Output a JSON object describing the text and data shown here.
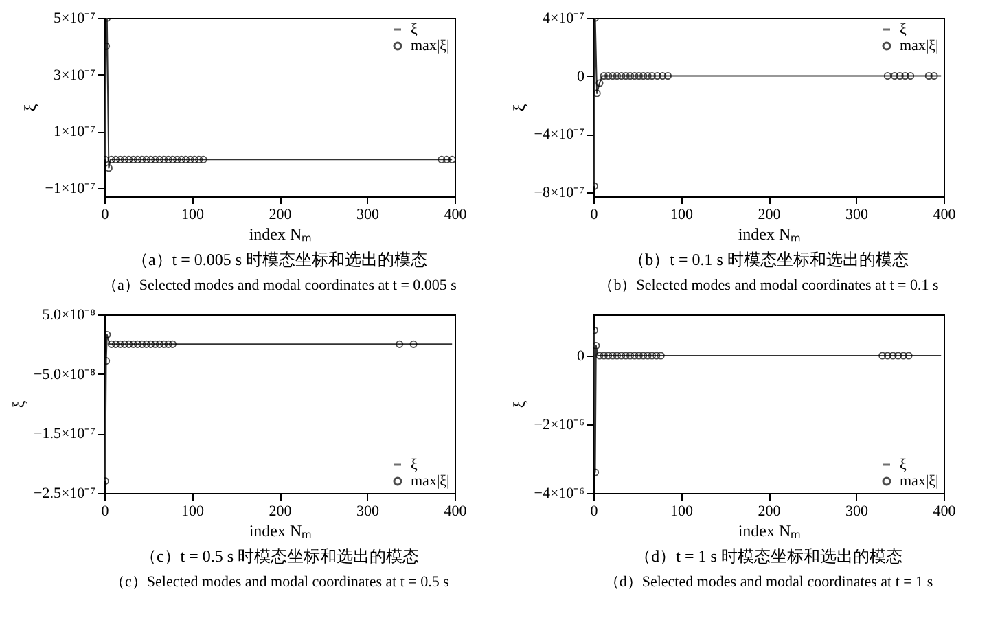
{
  "chart_data": [
    {
      "type": "line",
      "title": "（a）t = 0.005 s 时模态坐标和选出的模态",
      "subtitle": "（a）Selected modes and modal coordinates at t = 0.005 s",
      "xlabel": "index Nₘ",
      "ylabel": "ξ",
      "xlim": [
        0,
        400
      ],
      "xticks": [
        0,
        100,
        200,
        300,
        400
      ],
      "ylim": [
        -1.3e-07,
        5e-07
      ],
      "yticks": [
        {
          "value": -1e-07,
          "label": "−1×10⁻⁷"
        },
        {
          "value": 1e-07,
          "label": "1×10⁻⁷"
        },
        {
          "value": 3e-07,
          "label": "3×10⁻⁷"
        },
        {
          "value": 5e-07,
          "label": "5×10⁻⁷"
        }
      ],
      "grid": false,
      "legend": "top right",
      "series": [
        {
          "name": "ξ",
          "type": "line",
          "marker": "none",
          "color": "#333333",
          "x": [
            1,
            2,
            3,
            5,
            7,
            397
          ],
          "values": [
            0,
            4e-07,
            5e-07,
            -3e-08,
            0,
            0
          ]
        },
        {
          "name": "max|ξ|",
          "type": "scatter",
          "marker": "circle",
          "color": "#000000",
          "x": [
            1,
            2,
            3,
            5,
            8,
            13,
            18,
            23,
            28,
            33,
            38,
            43,
            48,
            53,
            58,
            63,
            68,
            73,
            78,
            83,
            88,
            93,
            98,
            103,
            108,
            113,
            385,
            391,
            397
          ],
          "values": [
            0,
            4e-07,
            5e-07,
            -3e-08,
            0,
            0,
            0,
            0,
            0,
            0,
            0,
            0,
            0,
            0,
            0,
            0,
            0,
            0,
            0,
            0,
            0,
            0,
            0,
            0,
            0,
            0,
            0,
            0,
            0
          ]
        }
      ]
    },
    {
      "type": "line",
      "title": "（b）t = 0.1 s 时模态坐标和选出的模态",
      "subtitle": "（b）Selected modes and modal coordinates at t = 0.1 s",
      "xlabel": "index Nₘ",
      "ylabel": "ξ",
      "xlim": [
        0,
        400
      ],
      "xticks": [
        0,
        100,
        200,
        300,
        400
      ],
      "ylim": [
        -8.3e-07,
        4e-07
      ],
      "yticks": [
        {
          "value": -8e-07,
          "label": "−8×10⁻⁷"
        },
        {
          "value": -4e-07,
          "label": "−4×10⁻⁷"
        },
        0,
        {
          "value": 4e-07,
          "label": "4×10⁻⁷"
        }
      ],
      "grid": false,
      "legend": "top right",
      "series": [
        {
          "name": "ξ",
          "type": "line",
          "marker": "none",
          "color": "#333333",
          "x": [
            1,
            2,
            4,
            7,
            10,
            397
          ],
          "values": [
            -7.6e-07,
            4e-07,
            -1.2e-07,
            -5e-08,
            0,
            0
          ]
        },
        {
          "name": "max|ξ|",
          "type": "scatter",
          "marker": "circle",
          "color": "#000000",
          "x": [
            1,
            2,
            4,
            7,
            12,
            17,
            22,
            27,
            32,
            37,
            42,
            47,
            52,
            57,
            62,
            67,
            73,
            79,
            85,
            336,
            344,
            350,
            356,
            362,
            383,
            389
          ],
          "values": [
            -7.6e-07,
            4e-07,
            -1.2e-07,
            -5e-08,
            0,
            0,
            0,
            0,
            0,
            0,
            0,
            0,
            0,
            0,
            0,
            0,
            0,
            0,
            0,
            0,
            0,
            0,
            0,
            0,
            0,
            0
          ]
        }
      ]
    },
    {
      "type": "line",
      "title": "（c）t = 0.5 s 时模态坐标和选出的模态",
      "subtitle": "（c）Selected modes and modal coordinates at t = 0.5 s",
      "xlabel": "index Nₘ",
      "ylabel": "ξ",
      "xlim": [
        0,
        400
      ],
      "xticks": [
        0,
        100,
        200,
        300,
        400
      ],
      "ylim": [
        -2.5e-07,
        5e-08
      ],
      "yticks": [
        {
          "value": -2.5e-07,
          "label": "−2.5×10⁻⁷"
        },
        {
          "value": -1.5e-07,
          "label": "−1.5×10⁻⁷"
        },
        {
          "value": -5e-08,
          "label": "−5.0×10⁻⁸"
        },
        {
          "value": 5e-08,
          "label": "5.0×10⁻⁸"
        }
      ],
      "grid": false,
      "legend": "bottom right",
      "series": [
        {
          "name": "ξ",
          "type": "line",
          "marker": "none",
          "color": "#333333",
          "x": [
            1,
            2,
            3,
            6,
            397
          ],
          "values": [
            -2.3e-07,
            -2.8e-08,
            1.6e-08,
            0,
            0
          ]
        },
        {
          "name": "max|ξ|",
          "type": "scatter",
          "marker": "circle",
          "color": "#000000",
          "x": [
            1,
            2,
            3,
            8,
            13,
            18,
            23,
            28,
            33,
            38,
            43,
            48,
            53,
            58,
            63,
            68,
            73,
            78,
            337,
            353
          ],
          "values": [
            -2.3e-07,
            -2.8e-08,
            1.6e-08,
            0,
            0,
            0,
            0,
            0,
            0,
            0,
            0,
            0,
            0,
            0,
            0,
            0,
            0,
            0,
            0,
            0
          ]
        }
      ]
    },
    {
      "type": "line",
      "title": "（d）t = 1 s 时模态坐标和选出的模态",
      "subtitle": "（d）Selected modes and modal coordinates at t = 1 s",
      "xlabel": "index Nₘ",
      "ylabel": "ξ",
      "xlim": [
        0,
        400
      ],
      "xticks": [
        0,
        100,
        200,
        300,
        400
      ],
      "ylim": [
        -4e-06,
        1.2e-06
      ],
      "yticks": [
        {
          "value": -4e-06,
          "label": "−4×10⁻⁶"
        },
        {
          "value": -2e-06,
          "label": "−2×10⁻⁶"
        },
        0
      ],
      "grid": false,
      "legend": "bottom right",
      "series": [
        {
          "name": "ξ",
          "type": "line",
          "marker": "none",
          "color": "#333333",
          "x": [
            1,
            2,
            3,
            5,
            397
          ],
          "values": [
            7.4e-07,
            -3.4e-06,
            2.9e-07,
            0,
            0
          ]
        },
        {
          "name": "max|ξ|",
          "type": "scatter",
          "marker": "circle",
          "color": "#000000",
          "x": [
            1,
            2,
            3,
            7,
            12,
            17,
            22,
            27,
            32,
            37,
            42,
            47,
            52,
            57,
            62,
            67,
            72,
            77,
            330,
            336,
            342,
            348,
            354,
            360
          ],
          "values": [
            7.4e-07,
            -3.4e-06,
            2.9e-07,
            0,
            0,
            0,
            0,
            0,
            0,
            0,
            0,
            0,
            0,
            0,
            0,
            0,
            0,
            0,
            0,
            0,
            0,
            0,
            0,
            0
          ]
        }
      ]
    }
  ]
}
